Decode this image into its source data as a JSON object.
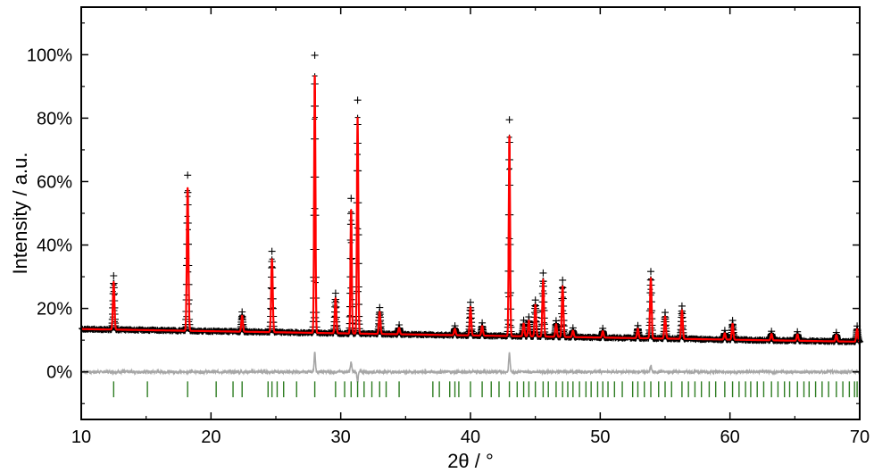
{
  "chart_data": {
    "type": "line",
    "title": "",
    "xlabel": "2θ / °",
    "ylabel": "Intensity / a.u.",
    "xlim": [
      10,
      70
    ],
    "ylim": [
      -15,
      115
    ],
    "x_ticks": [
      10,
      20,
      30,
      40,
      50,
      60,
      70
    ],
    "y_ticks": [
      0,
      20,
      40,
      60,
      80,
      100
    ],
    "y_tick_labels": [
      "0%",
      "20%",
      "40%",
      "60%",
      "80%",
      "100%"
    ],
    "grid": false,
    "legend": "none",
    "background": {
      "start": 13.5,
      "end": 9.5
    },
    "peaks": [
      {
        "x": 12.5,
        "height": 15,
        "width": 0.06
      },
      {
        "x": 18.2,
        "height": 45,
        "width": 0.06
      },
      {
        "x": 22.4,
        "height": 5,
        "width": 0.06
      },
      {
        "x": 24.7,
        "height": 23,
        "width": 0.06
      },
      {
        "x": 28.0,
        "height": 81,
        "width": 0.05
      },
      {
        "x": 29.6,
        "height": 11,
        "width": 0.06
      },
      {
        "x": 30.8,
        "height": 39,
        "width": 0.05
      },
      {
        "x": 31.3,
        "height": 68,
        "width": 0.05
      },
      {
        "x": 33.0,
        "height": 7,
        "width": 0.06
      },
      {
        "x": 34.5,
        "height": 2,
        "width": 0.06
      },
      {
        "x": 38.8,
        "height": 2,
        "width": 0.06
      },
      {
        "x": 40.0,
        "height": 9,
        "width": 0.06
      },
      {
        "x": 40.9,
        "height": 3,
        "width": 0.06
      },
      {
        "x": 43.0,
        "height": 63,
        "width": 0.05
      },
      {
        "x": 44.1,
        "height": 4,
        "width": 0.06
      },
      {
        "x": 44.5,
        "height": 5,
        "width": 0.06
      },
      {
        "x": 45.0,
        "height": 10,
        "width": 0.06
      },
      {
        "x": 45.6,
        "height": 18,
        "width": 0.06
      },
      {
        "x": 46.6,
        "height": 4,
        "width": 0.06
      },
      {
        "x": 47.1,
        "height": 16,
        "width": 0.06
      },
      {
        "x": 47.9,
        "height": 2,
        "width": 0.06
      },
      {
        "x": 50.2,
        "height": 2,
        "width": 0.06
      },
      {
        "x": 52.9,
        "height": 3,
        "width": 0.06
      },
      {
        "x": 53.9,
        "height": 19,
        "width": 0.06
      },
      {
        "x": 55.0,
        "height": 7,
        "width": 0.06
      },
      {
        "x": 56.3,
        "height": 9,
        "width": 0.06
      },
      {
        "x": 59.6,
        "height": 2,
        "width": 0.06
      },
      {
        "x": 60.2,
        "height": 5,
        "width": 0.06
      },
      {
        "x": 63.2,
        "height": 2,
        "width": 0.06
      },
      {
        "x": 65.2,
        "height": 2,
        "width": 0.06
      },
      {
        "x": 68.2,
        "height": 2,
        "width": 0.06
      },
      {
        "x": 69.8,
        "height": 4,
        "width": 0.06
      }
    ],
    "difference_baseline": 0,
    "difference_spikes": [
      {
        "x": 28.0,
        "value": 6
      },
      {
        "x": 30.8,
        "value": 3
      },
      {
        "x": 31.3,
        "value": -3
      },
      {
        "x": 43.0,
        "value": 6
      },
      {
        "x": 53.9,
        "value": 2
      }
    ],
    "reflection_marks_y": [
      -8,
      -3
    ],
    "reflection_positions": [
      12.5,
      15.1,
      18.2,
      20.4,
      21.7,
      22.4,
      24.4,
      24.7,
      25.1,
      25.6,
      26.6,
      28.0,
      29.6,
      30.3,
      30.8,
      31.3,
      31.8,
      32.4,
      33.0,
      33.5,
      34.5,
      37.1,
      37.6,
      38.4,
      38.8,
      39.1,
      40.0,
      40.9,
      41.6,
      42.2,
      43.0,
      43.6,
      44.1,
      44.5,
      45.0,
      45.6,
      46.0,
      46.6,
      47.1,
      47.5,
      47.9,
      48.4,
      48.9,
      49.3,
      49.8,
      50.2,
      50.6,
      51.1,
      51.7,
      52.5,
      52.9,
      53.4,
      53.9,
      54.5,
      55.0,
      55.5,
      56.3,
      56.8,
      57.3,
      57.8,
      58.4,
      58.9,
      59.6,
      60.2,
      60.7,
      61.2,
      61.6,
      62.1,
      62.6,
      63.2,
      63.7,
      64.2,
      64.6,
      65.2,
      65.7,
      66.1,
      66.6,
      67.1,
      67.6,
      68.2,
      68.7,
      69.2,
      69.6,
      69.8
    ],
    "series": [
      {
        "role": "observed",
        "color": "#000000",
        "marker": "+"
      },
      {
        "role": "calculated",
        "color": "#ff0000",
        "line": "solid"
      },
      {
        "role": "difference",
        "color": "#a6a6a6",
        "line": "solid"
      },
      {
        "role": "reflections",
        "color": "#2e7d22",
        "marker": "|"
      }
    ]
  }
}
